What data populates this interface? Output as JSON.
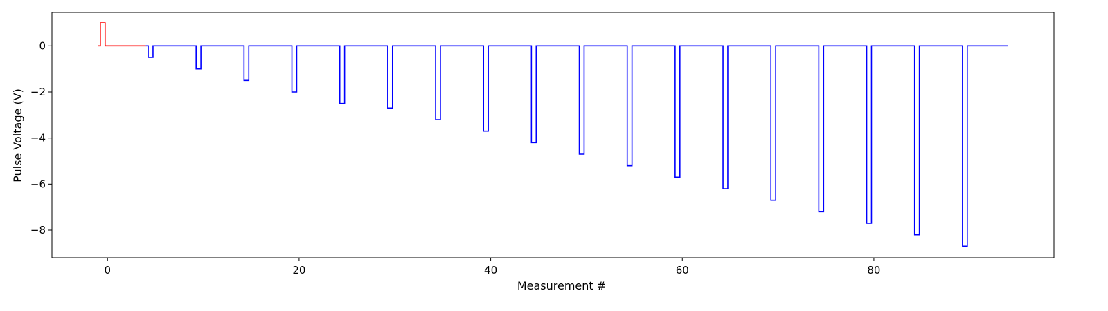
{
  "chart_data": {
    "type": "line",
    "title": "",
    "xlabel": "Measurement #",
    "ylabel": "Pulse Voltage (V)",
    "xlim": [
      -5.8,
      98.8
    ],
    "ylim": [
      -9.2,
      1.45
    ],
    "xticks": [
      0,
      20,
      40,
      60,
      80
    ],
    "yticks": [
      0,
      -2,
      -4,
      -6,
      -8
    ],
    "ytick_labels": [
      "0",
      "−2",
      "−4",
      "−6",
      "−8"
    ],
    "grid": false,
    "legend": "none",
    "step": "post",
    "series": [
      {
        "color": "#ff0000",
        "x": [
          -1,
          -0.75,
          -0.75,
          -0.25,
          -0.25,
          4
        ],
        "y": [
          0,
          0,
          1,
          1,
          0,
          0
        ]
      },
      {
        "color": "#0000ff",
        "pulse_width": 0.5,
        "pulse_x": [
          4.25,
          9.25,
          14.25,
          19.25,
          24.25,
          29.25,
          34.25,
          39.25,
          44.25,
          49.25,
          54.25,
          59.25,
          64.25,
          69.25,
          74.25,
          79.25,
          84.25,
          89.25
        ],
        "pulse_y": [
          -0.5,
          -1.0,
          -1.5,
          -2.0,
          -2.5,
          -2.7,
          -3.2,
          -3.7,
          -4.2,
          -4.7,
          -5.2,
          -5.7,
          -6.2,
          -6.7,
          -7.2,
          -7.7,
          -8.2,
          -8.7
        ],
        "x_start": 4,
        "x_end": 94
      }
    ]
  }
}
